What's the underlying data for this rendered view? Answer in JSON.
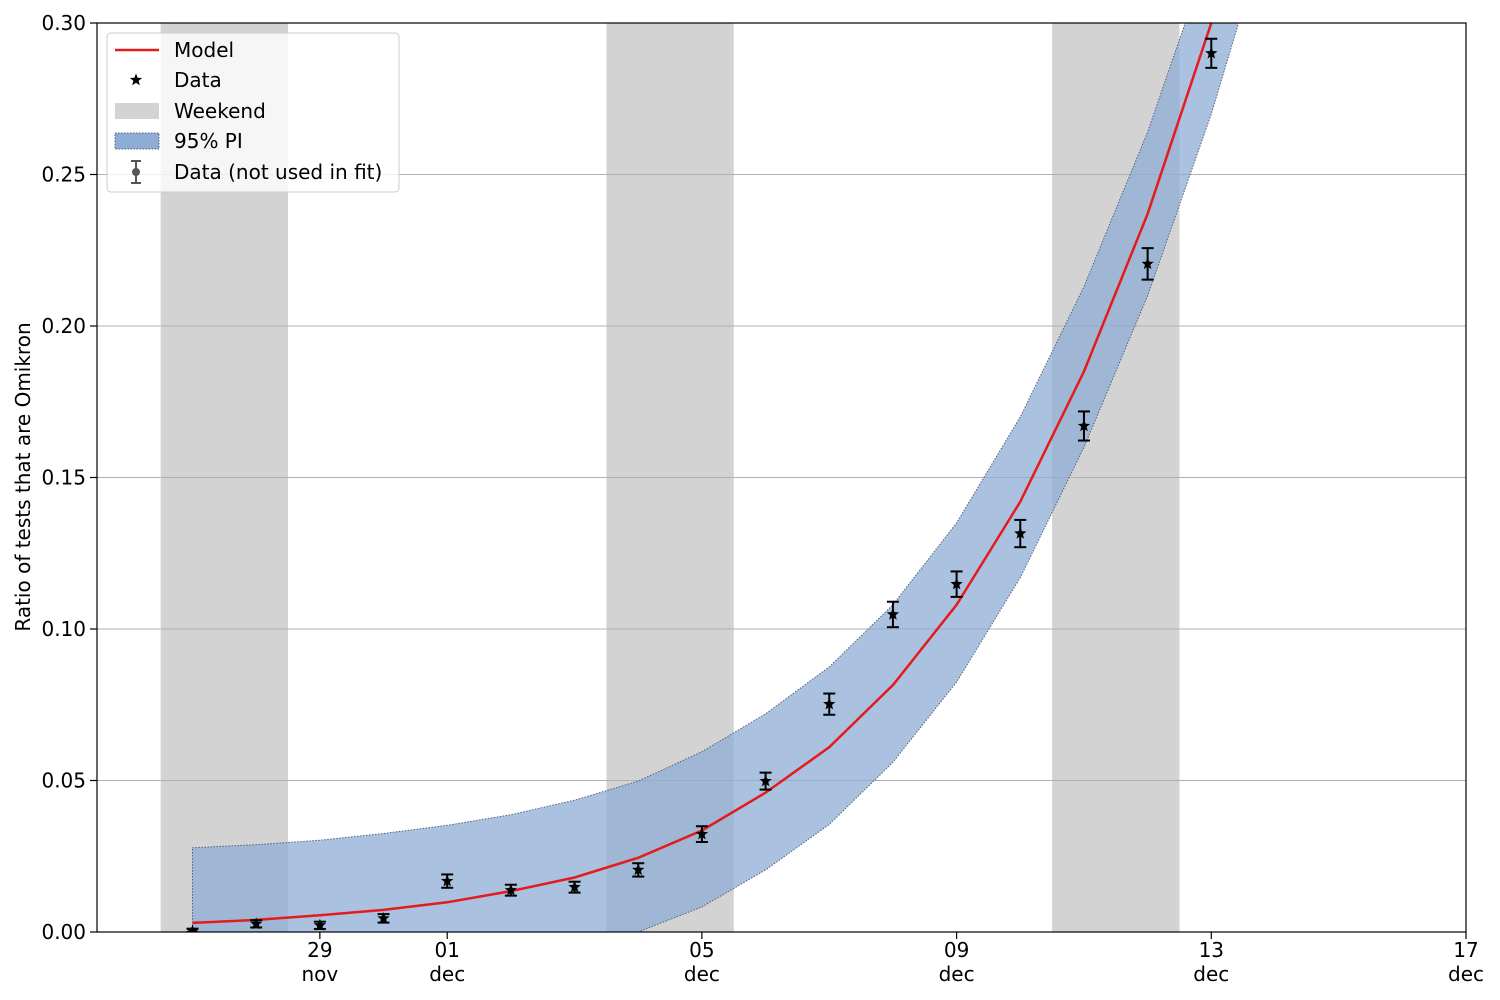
{
  "chart_data": {
    "type": "line",
    "title": "",
    "xlabel": "",
    "ylabel": "Ratio of tests that are Omikron",
    "xlim": [
      "2021-11-25T12:00",
      "2021-12-17"
    ],
    "ylim": [
      0,
      0.3
    ],
    "yticks": [
      0.0,
      0.05,
      0.1,
      0.15,
      0.2,
      0.25,
      0.3
    ],
    "ytick_labels": [
      "0.00",
      "0.05",
      "0.10",
      "0.15",
      "0.20",
      "0.25",
      "0.30"
    ],
    "xticks": [
      "2021-11-29",
      "2021-12-01",
      "2021-12-05",
      "2021-12-09",
      "2021-12-13",
      "2021-12-17"
    ],
    "xtick_labels": [
      {
        "day": "29",
        "month": "nov"
      },
      {
        "day": "01",
        "month": "dec"
      },
      {
        "day": "05",
        "month": "dec"
      },
      {
        "day": "09",
        "month": "dec"
      },
      {
        "day": "13",
        "month": "dec"
      },
      {
        "day": "17",
        "month": "dec"
      }
    ],
    "grid": "y",
    "legend_position": "top-left",
    "colors": {
      "model": "#e41a1c",
      "data": "#000000",
      "weekend": "#d3d3d3",
      "pi_fill": "#8eadd4",
      "pi_edge": "#555f7a",
      "grid": "#b0b0b0"
    },
    "weekends": [
      {
        "start": "2021-11-26T12:00",
        "end": "2021-11-28T12:00"
      },
      {
        "start": "2021-12-03T12:00",
        "end": "2021-12-05T12:00"
      },
      {
        "start": "2021-12-10T12:00",
        "end": "2021-12-12T12:00"
      }
    ],
    "series": [
      {
        "name": "Model",
        "type": "line",
        "x": [
          "2021-11-27",
          "2021-11-28",
          "2021-11-29",
          "2021-11-30",
          "2021-12-01",
          "2021-12-02",
          "2021-12-03",
          "2021-12-04",
          "2021-12-05",
          "2021-12-06",
          "2021-12-07",
          "2021-12-08",
          "2021-12-09",
          "2021-12-10",
          "2021-12-11",
          "2021-12-12",
          "2021-12-13",
          "2021-12-14"
        ],
        "y": [
          0.003,
          0.004,
          0.0055,
          0.0073,
          0.0098,
          0.0135,
          0.018,
          0.0245,
          0.0335,
          0.046,
          0.061,
          0.0815,
          0.108,
          0.142,
          0.185,
          0.237,
          0.3,
          0.38
        ]
      },
      {
        "name": "95% PI",
        "type": "band",
        "x": [
          "2021-11-27",
          "2021-11-28",
          "2021-11-29",
          "2021-11-30",
          "2021-12-01",
          "2021-12-02",
          "2021-12-03",
          "2021-12-04",
          "2021-12-05",
          "2021-12-06",
          "2021-12-07",
          "2021-12-08",
          "2021-12-09",
          "2021-12-10",
          "2021-12-11",
          "2021-12-12",
          "2021-12-13",
          "2021-12-14"
        ],
        "upper": [
          0.0278,
          0.0288,
          0.0303,
          0.0325,
          0.0352,
          0.0387,
          0.0435,
          0.0498,
          0.0595,
          0.072,
          0.0875,
          0.108,
          0.135,
          0.17,
          0.213,
          0.264,
          0.325,
          0.4
        ],
        "lower": [
          0.0,
          0.0,
          0.0,
          0.0,
          0.0,
          0.0,
          0.0,
          0.0,
          0.0083,
          0.0205,
          0.0355,
          0.056,
          0.0825,
          0.117,
          0.16,
          0.21,
          0.27,
          0.34
        ]
      },
      {
        "name": "Data",
        "type": "scatter",
        "marker": "star",
        "x": [
          "2021-11-27",
          "2021-11-28",
          "2021-11-29",
          "2021-11-30",
          "2021-12-01",
          "2021-12-02",
          "2021-12-03",
          "2021-12-04",
          "2021-12-05",
          "2021-12-06",
          "2021-12-07",
          "2021-12-08",
          "2021-12-09",
          "2021-12-10",
          "2021-12-11",
          "2021-12-12",
          "2021-12-13"
        ],
        "y": [
          0.0003,
          0.0027,
          0.0022,
          0.0045,
          0.0168,
          0.0138,
          0.0148,
          0.0205,
          0.0323,
          0.0498,
          0.0752,
          0.1048,
          0.1148,
          0.1315,
          0.167,
          0.2205,
          0.29
        ]
      },
      {
        "name": "Data (not used in fit)",
        "type": "errorbar",
        "x": [
          "2021-11-27",
          "2021-11-28",
          "2021-11-29",
          "2021-11-30",
          "2021-12-01",
          "2021-12-02",
          "2021-12-03",
          "2021-12-04",
          "2021-12-05",
          "2021-12-06",
          "2021-12-07",
          "2021-12-08",
          "2021-12-09",
          "2021-12-10",
          "2021-12-11",
          "2021-12-12",
          "2021-12-13"
        ],
        "y": [
          0.0003,
          0.0027,
          0.0022,
          0.0045,
          0.0168,
          0.0138,
          0.0148,
          0.0205,
          0.0323,
          0.0498,
          0.0752,
          0.1048,
          0.1148,
          0.1315,
          0.167,
          0.2205,
          0.29
        ],
        "yerr": [
          0.0008,
          0.0012,
          0.0012,
          0.0014,
          0.0022,
          0.0018,
          0.0018,
          0.0022,
          0.0026,
          0.0028,
          0.0035,
          0.0042,
          0.0042,
          0.0045,
          0.0048,
          0.0052,
          0.0048
        ]
      }
    ],
    "legend": [
      {
        "label": "Model",
        "kind": "line"
      },
      {
        "label": "Data",
        "kind": "star"
      },
      {
        "label": "Weekend",
        "kind": "weekend"
      },
      {
        "label": "95% PI",
        "kind": "band"
      },
      {
        "label": "Data (not used in fit)",
        "kind": "errorbar"
      }
    ]
  }
}
